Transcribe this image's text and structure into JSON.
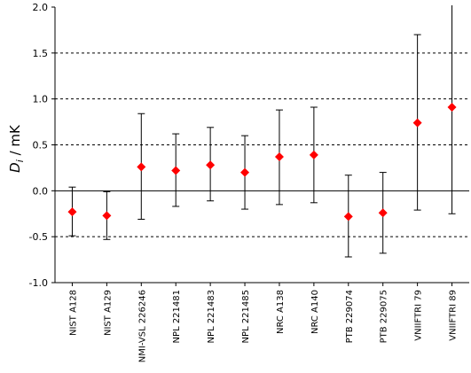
{
  "chart_data": {
    "type": "scatter",
    "ylabel_main": "D",
    "ylabel_sub": "i",
    "ylabel_unit": " / mK",
    "xlabel": "",
    "ylim": [
      -1.0,
      2.0
    ],
    "yticks": [
      "-1.0",
      "-0.5",
      "0.0",
      "0.5",
      "1.0",
      "1.5",
      "2.0"
    ],
    "gridlines": [
      -0.5,
      0.5,
      1.0,
      1.5
    ],
    "zero_line": 0.0,
    "marker_color": "#ff0000",
    "categories": [
      "NIST A128",
      "NIST A129",
      "NMI-VSL 226246",
      "NPL 221481",
      "NPL 221483",
      "NPL 221485",
      "NRC A138",
      "NRC A140",
      "PTB 229074",
      "PTB 229075",
      "VNIIFTRI 79",
      "VNIIFTRI 89"
    ],
    "series": [
      {
        "values": [
          -0.23,
          -0.27,
          0.26,
          0.22,
          0.28,
          0.2,
          0.37,
          0.39,
          -0.28,
          -0.24,
          0.74,
          0.91
        ],
        "err_low": [
          -0.49,
          -0.53,
          -0.31,
          -0.17,
          -0.11,
          -0.2,
          -0.15,
          -0.13,
          -0.72,
          -0.68,
          -0.21,
          -0.25
        ],
        "err_high": [
          0.04,
          -0.01,
          0.84,
          0.62,
          0.69,
          0.6,
          0.88,
          0.91,
          0.17,
          0.2,
          1.7,
          2.05
        ]
      }
    ]
  }
}
